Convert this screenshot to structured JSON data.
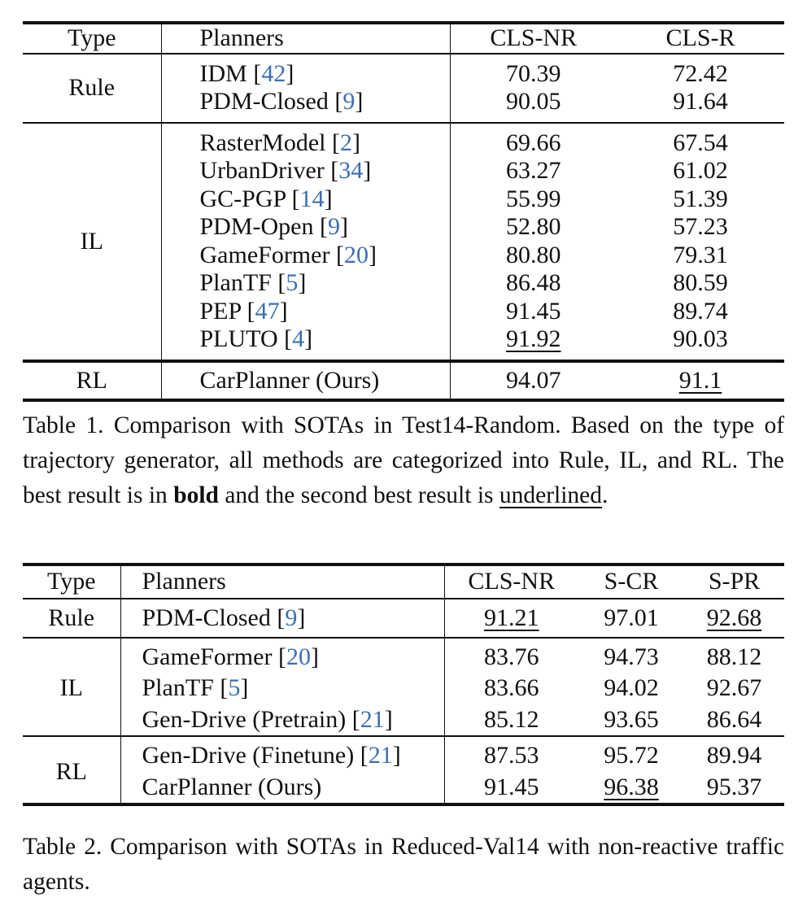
{
  "table1": {
    "headers": [
      "Type",
      "Planners",
      "CLS-NR",
      "CLS-R"
    ],
    "groups": [
      {
        "type": "Rule",
        "rows": [
          {
            "planner": "IDM",
            "ref": "42",
            "cls_nr": "70.39",
            "cls_r": "72.42",
            "cls_r_style": ""
          },
          {
            "planner": "PDM-Closed",
            "ref": "9",
            "cls_nr": "90.05",
            "cls_r": "91.64",
            "cls_r_style": "bold"
          }
        ]
      },
      {
        "type": "IL",
        "rows": [
          {
            "planner": "RasterModel",
            "ref": "2",
            "cls_nr": "69.66",
            "cls_r": "67.54"
          },
          {
            "planner": "UrbanDriver",
            "ref": "34",
            "cls_nr": "63.27",
            "cls_r": "61.02"
          },
          {
            "planner": "GC-PGP",
            "ref": "14",
            "cls_nr": "55.99",
            "cls_r": "51.39"
          },
          {
            "planner": "PDM-Open",
            "ref": "9",
            "cls_nr": "52.80",
            "cls_r": "57.23"
          },
          {
            "planner": "GameFormer",
            "ref": "20",
            "cls_nr": "80.80",
            "cls_r": "79.31"
          },
          {
            "planner": "PlanTF",
            "ref": "5",
            "cls_nr": "86.48",
            "cls_r": "80.59"
          },
          {
            "planner": "PEP",
            "ref": "47",
            "cls_nr": "91.45",
            "cls_r": "89.74"
          },
          {
            "planner": "PLUTO",
            "ref": "4",
            "cls_nr": "91.92",
            "cls_r": "90.03",
            "cls_nr_style": "underline"
          }
        ]
      },
      {
        "type": "RL",
        "rows": [
          {
            "planner": "CarPlanner (Ours)",
            "ref": "",
            "cls_nr": "94.07",
            "cls_r": "91.1",
            "cls_nr_style": "bold",
            "cls_r_style": "underline"
          }
        ]
      }
    ]
  },
  "caption1": {
    "label": "Table 1.",
    "part1": "Comparison with SOTAs in Test14-Random. Based on the type of trajectory generator, all methods are categorized into Rule, IL, and RL. The best result is in",
    "bold_word": "bold",
    "part2": "and the second best result is",
    "underline_word": "underlined",
    "end": "."
  },
  "table2": {
    "headers": [
      "Type",
      "Planners",
      "CLS-NR",
      "S-CR",
      "S-PR"
    ],
    "groups": [
      {
        "type": "Rule",
        "rows": [
          {
            "planner": "PDM-Closed",
            "ref": "9",
            "cls_nr": "91.21",
            "s_cr": "97.01",
            "s_pr": "92.68"
          }
        ]
      },
      {
        "type": "IL",
        "rows": [
          {
            "planner": "GameFormer",
            "ref": "20",
            "cls_nr": "83.76",
            "s_cr": "94.73",
            "s_pr": "88.12"
          },
          {
            "planner": "PlanTF",
            "ref": "5",
            "cls_nr": "83.66",
            "s_cr": "94.02",
            "s_pr": "92.67"
          },
          {
            "planner": "Gen-Drive (Pretrain)",
            "ref": "21",
            "cls_nr": "85.12",
            "s_cr": "93.65",
            "s_pr": "86.64"
          }
        ]
      },
      {
        "type": "RL",
        "rows": [
          {
            "planner": "Gen-Drive (Finetune)",
            "ref": "21",
            "cls_nr": "87.53",
            "s_cr": "95.72",
            "s_pr": "89.94"
          },
          {
            "planner": "CarPlanner (Ours)",
            "ref": "",
            "cls_nr": "91.45",
            "s_cr": "96.38",
            "s_pr": "95.37"
          }
        ]
      }
    ]
  },
  "caption2": {
    "label": "Table 2.",
    "text": "Comparison with SOTAs in Reduced-Val14 with non-reactive traffic agents."
  }
}
